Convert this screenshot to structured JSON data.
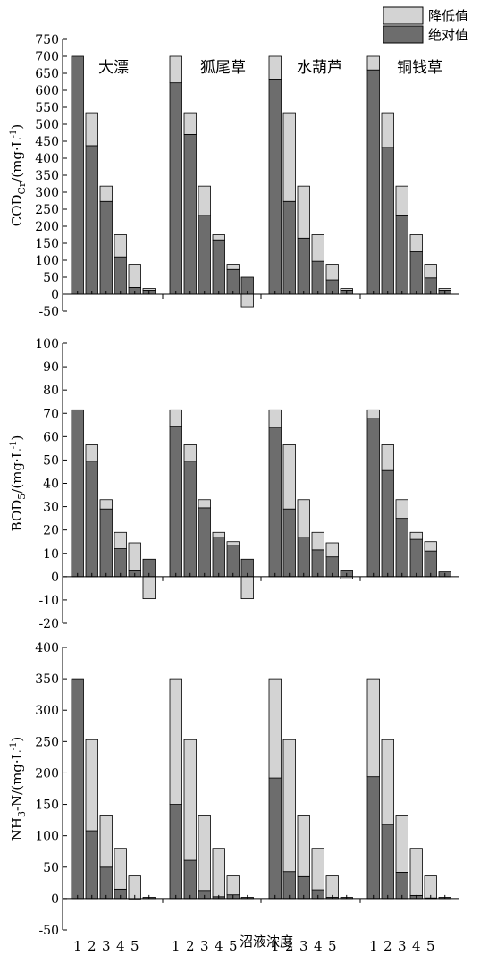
{
  "legend": {
    "items": [
      {
        "name": "降低值",
        "color": "#d3d3d3"
      },
      {
        "name": "绝对值",
        "color": "#6d6d6d"
      }
    ]
  },
  "xlabel": "沼液浓度",
  "chart_data": [
    {
      "type": "bar",
      "ylabel_main": "COD",
      "ylabel_sub": "Cr",
      "ylabel_rest": "/(mg·L",
      "ylabel_sup": "-1",
      "ylabel_end": ")",
      "ylim": [
        -50,
        750
      ],
      "yticks": [
        -50,
        0,
        50,
        100,
        150,
        200,
        250,
        300,
        350,
        400,
        450,
        500,
        550,
        600,
        650,
        700,
        750
      ],
      "categories": [
        "1",
        "2",
        "3",
        "4",
        "5",
        ""
      ],
      "show_category_labels": false,
      "groups": [
        {
          "name": "大漂",
          "series": [
            {
              "name": "绝对值",
              "values": [
                700,
                437,
                273,
                110,
                20,
                12
              ]
            },
            {
              "name": "降低值",
              "values": [
                0,
                97,
                45,
                65,
                68,
                5
              ]
            }
          ]
        },
        {
          "name": "狐尾草",
          "series": [
            {
              "name": "绝对值",
              "values": [
                622,
                470,
                232,
                160,
                73,
                50
              ]
            },
            {
              "name": "降低值",
              "values": [
                78,
                64,
                86,
                15,
                15,
                -37
              ]
            }
          ]
        },
        {
          "name": "水葫芦",
          "series": [
            {
              "name": "绝对值",
              "values": [
                633,
                273,
                165,
                97,
                42,
                12
              ]
            },
            {
              "name": "降低值",
              "values": [
                67,
                261,
                153,
                78,
                46,
                5
              ]
            }
          ]
        },
        {
          "name": "铜钱草",
          "series": [
            {
              "name": "绝对值",
              "values": [
                660,
                432,
                233,
                125,
                48,
                12
              ]
            },
            {
              "name": "降低值",
              "values": [
                40,
                102,
                85,
                50,
                40,
                5
              ]
            }
          ]
        }
      ]
    },
    {
      "type": "bar",
      "ylabel_main": "BOD",
      "ylabel_sub": "5",
      "ylabel_rest": "/(mg·L",
      "ylabel_sup": "-1",
      "ylabel_end": ")",
      "ylim": [
        -20,
        100
      ],
      "yticks": [
        -20,
        -10,
        0,
        10,
        20,
        30,
        40,
        50,
        60,
        70,
        80,
        90,
        100
      ],
      "categories": [
        "1",
        "2",
        "3",
        "4",
        "5",
        ""
      ],
      "show_category_labels": false,
      "groups": [
        {
          "name": "",
          "series": [
            {
              "name": "绝对值",
              "values": [
                71.5,
                49.5,
                29,
                12,
                2.5,
                7.5
              ]
            },
            {
              "name": "降低值",
              "values": [
                0,
                7,
                4,
                7,
                12,
                -9.5
              ]
            }
          ]
        },
        {
          "name": "",
          "series": [
            {
              "name": "绝对值",
              "values": [
                64.5,
                49.5,
                29.5,
                17,
                13.5,
                7.5
              ]
            },
            {
              "name": "降低值",
              "values": [
                7,
                7,
                3.5,
                2,
                1.5,
                -9.5
              ]
            }
          ]
        },
        {
          "name": "",
          "series": [
            {
              "name": "绝对值",
              "values": [
                64,
                29,
                17,
                11.5,
                8.5,
                2.5
              ]
            },
            {
              "name": "降低值",
              "values": [
                7.5,
                27.5,
                16,
                7.5,
                6,
                -1
              ]
            }
          ]
        },
        {
          "name": "",
          "series": [
            {
              "name": "绝对值",
              "values": [
                68,
                45.5,
                25,
                16,
                11,
                2
              ]
            },
            {
              "name": "降低值",
              "values": [
                3.5,
                11,
                8,
                3,
                4,
                0
              ]
            }
          ]
        }
      ]
    },
    {
      "type": "bar",
      "ylabel_main": "NH",
      "ylabel_sub": "3",
      "ylabel_rest": "-N/(mg·L",
      "ylabel_sup": "-1",
      "ylabel_end": ")",
      "ylim": [
        -50,
        400
      ],
      "yticks": [
        -50,
        0,
        50,
        100,
        150,
        200,
        250,
        300,
        350,
        400
      ],
      "categories": [
        "1",
        "2",
        "3",
        "4",
        "5",
        ""
      ],
      "show_category_labels": true,
      "groups": [
        {
          "name": "",
          "series": [
            {
              "name": "绝对值",
              "values": [
                350,
                108,
                50,
                15,
                0,
                2
              ]
            },
            {
              "name": "降低值",
              "values": [
                0,
                145,
                83,
                65,
                36,
                0
              ]
            }
          ]
        },
        {
          "name": "",
          "series": [
            {
              "name": "绝对值",
              "values": [
                150,
                61,
                13,
                3,
                6,
                2
              ]
            },
            {
              "name": "降低值",
              "values": [
                200,
                192,
                120,
                77,
                30,
                0
              ]
            }
          ]
        },
        {
          "name": "",
          "series": [
            {
              "name": "绝对值",
              "values": [
                192,
                43,
                35,
                14,
                2,
                2
              ]
            },
            {
              "name": "降低值",
              "values": [
                158,
                210,
                98,
                66,
                34,
                0
              ]
            }
          ]
        },
        {
          "name": "",
          "series": [
            {
              "name": "绝对值",
              "values": [
                194,
                118,
                42,
                5,
                1,
                2
              ]
            },
            {
              "name": "降低值",
              "values": [
                156,
                135,
                91,
                75,
                35,
                0
              ]
            }
          ]
        }
      ]
    }
  ]
}
